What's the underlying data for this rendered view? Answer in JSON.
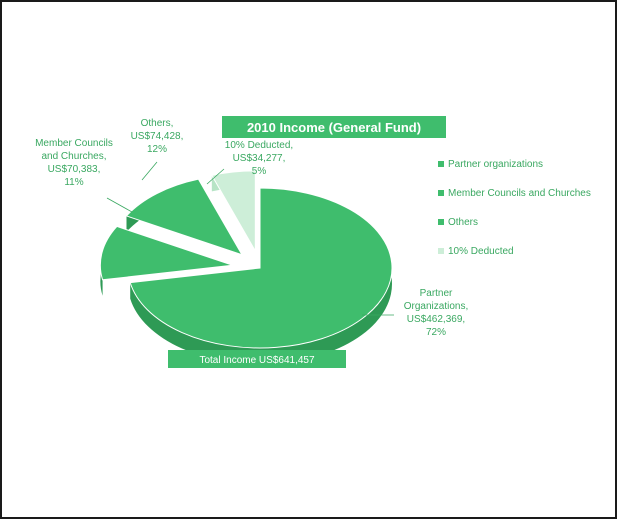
{
  "chart_data": {
    "type": "pie",
    "title": "2010 Income (General Fund)",
    "subtitle": "Total Income US$641,457",
    "colors": {
      "slice_fill": "#3fbd6d",
      "slice_side": "#2e9a55",
      "label_color": "#3aa861",
      "light_slice": "#cdeed8",
      "title_bg": "#3fbd6d"
    },
    "slices": [
      {
        "name": "Partner organizations",
        "label_lines": [
          "Partner",
          "Organizations,",
          "US$462,369,",
          "72%"
        ],
        "value": 462369,
        "percent": 72,
        "pop": false
      },
      {
        "name": "Member Councils and Churches",
        "label_lines": [
          "Member Councils",
          "and Churches,",
          "US$70,383,",
          "11%"
        ],
        "value": 70383,
        "percent": 11,
        "pop": true
      },
      {
        "name": "Others",
        "label_lines": [
          "Others,",
          "US$74,428,",
          "12%"
        ],
        "value": 74428,
        "percent": 12,
        "pop": true
      },
      {
        "name": "10% Deducted",
        "label_lines": [
          "10% Deducted,",
          "US$34,277,",
          "5%"
        ],
        "value": 34277,
        "percent": 5,
        "pop": true
      }
    ],
    "legend": {
      "placement": "right",
      "entries": [
        "Partner organizations",
        "Member Councils and Churches",
        "Others",
        "10% Deducted"
      ]
    }
  }
}
